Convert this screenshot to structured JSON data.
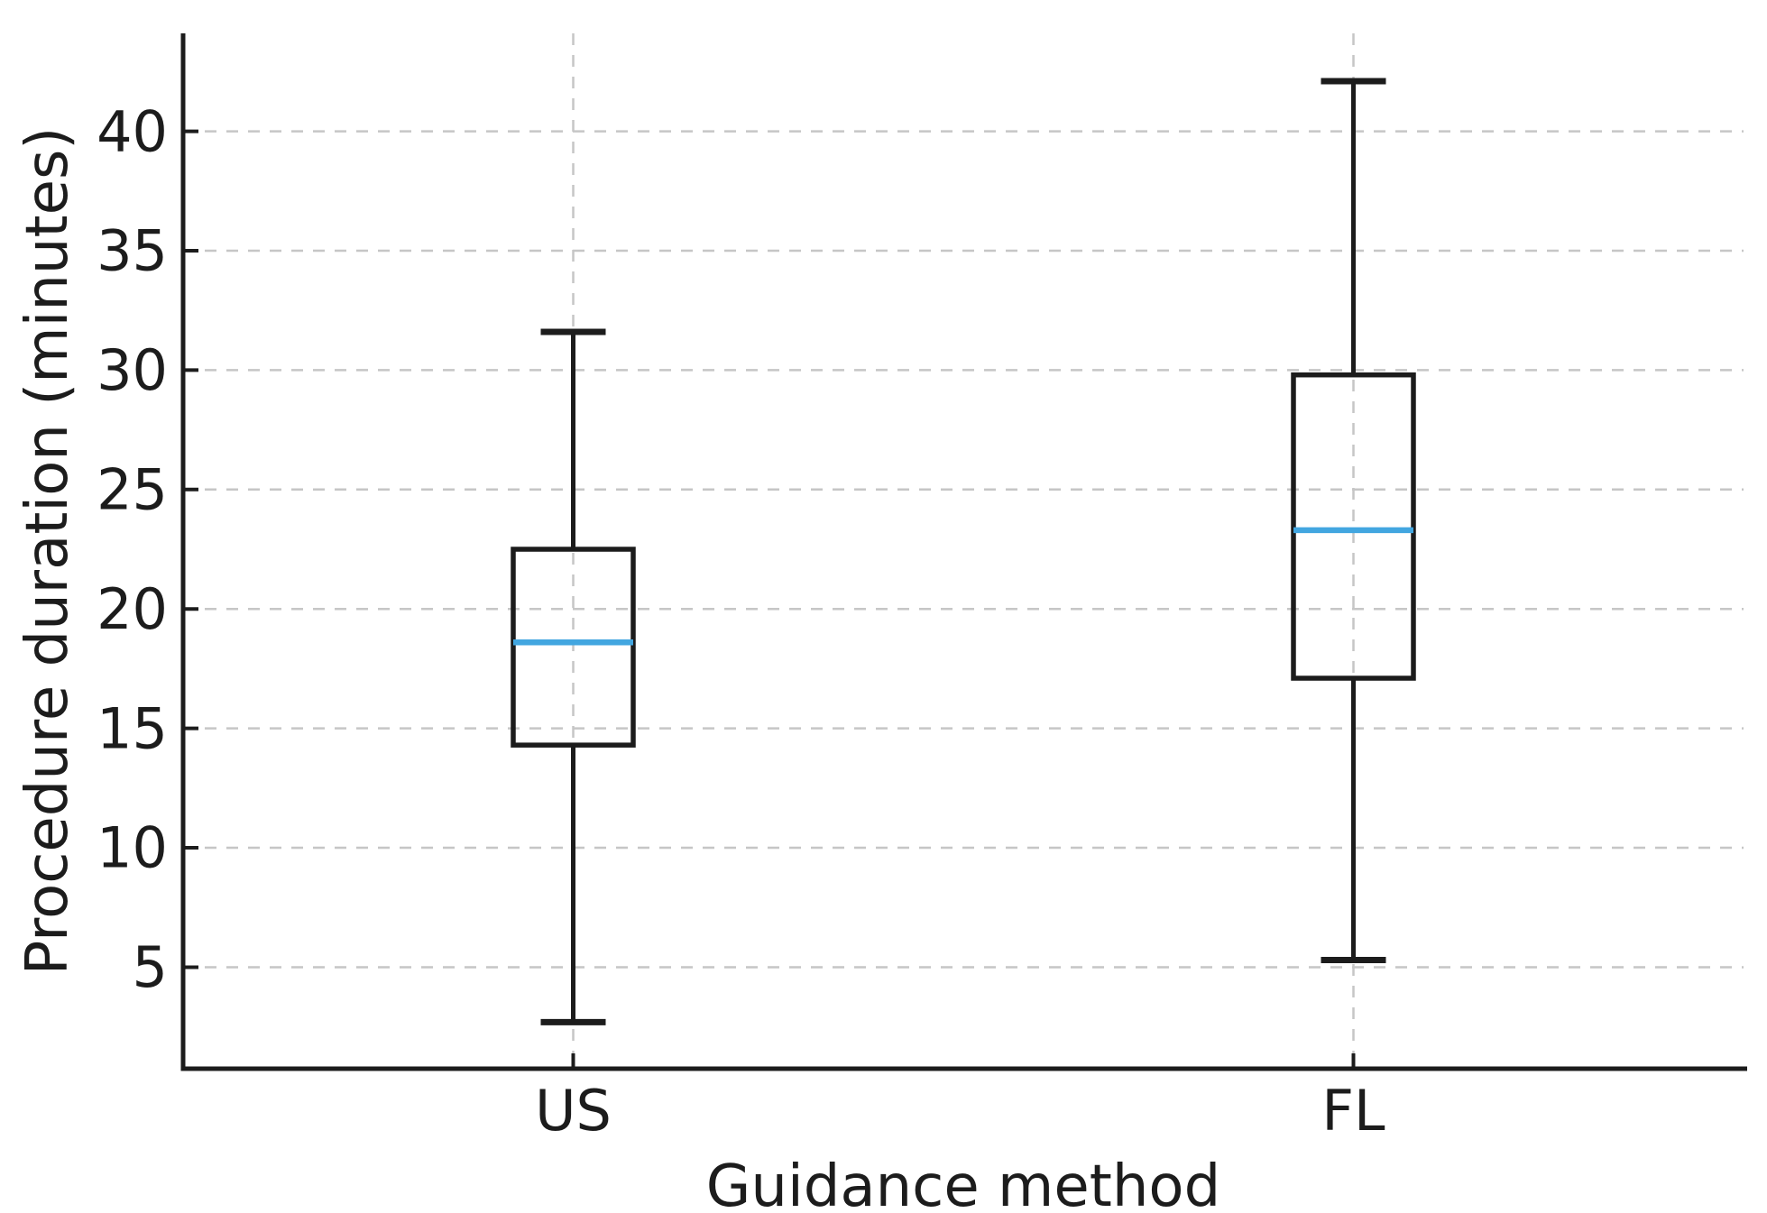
{
  "figure": {
    "background": "#ffffff"
  },
  "chart_data": {
    "type": "boxplot",
    "title": "",
    "xlabel": "Guidance method",
    "ylabel": "Procedure duration (minutes)",
    "categories": [
      "US",
      "FL"
    ],
    "yticks": [
      5,
      10,
      15,
      20,
      25,
      30,
      35,
      40
    ],
    "ylim": [
      0.75,
      44.1
    ],
    "grid": {
      "horizontal": true,
      "vertical_at_categories": true,
      "style": "dashed"
    },
    "legend": null,
    "series": [
      {
        "label": "US",
        "whisker_low": 2.7,
        "q1": 14.3,
        "median": 18.6,
        "q3": 22.5,
        "whisker_high": 31.6
      },
      {
        "label": "FL",
        "whisker_low": 5.3,
        "q1": 17.1,
        "median": 23.3,
        "q3": 29.8,
        "whisker_high": 42.1
      }
    ],
    "colors": {
      "box": "#1c1c1c",
      "median": "#42a6e0",
      "axis": "#1c1c1c",
      "grid": "#c6c6c6",
      "background": "#ffffff"
    }
  }
}
